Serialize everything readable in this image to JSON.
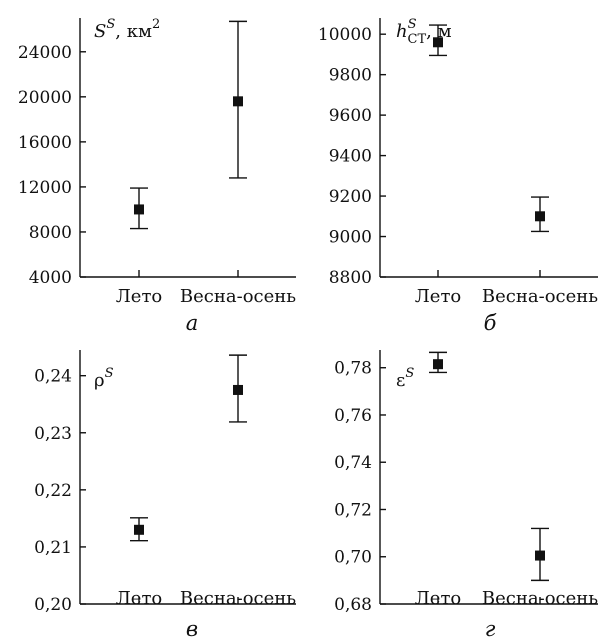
{
  "chart_data": [
    {
      "type": "scatter",
      "panel_letter": "а",
      "ylabel": "S^S, км²",
      "ylabel_parts": {
        "base": "S",
        "sup": "S",
        "unit": ", км",
        "unit_sup": "2"
      },
      "categories": [
        "Лето",
        "Весна-осень"
      ],
      "values": [
        10000,
        19600
      ],
      "err_low": [
        8300,
        12800
      ],
      "err_high": [
        11900,
        26700
      ],
      "ylim": [
        4000,
        27000
      ],
      "yticks": [
        4000,
        8000,
        12000,
        16000,
        20000,
        24000
      ],
      "ytick_labels": [
        "4000",
        "8000",
        "12000",
        "16000",
        "20000",
        "24000"
      ]
    },
    {
      "type": "scatter",
      "panel_letter": "б",
      "ylabel": "h^S_CT, м",
      "ylabel_parts": {
        "base": "h",
        "sup": "S",
        "sub": "CT",
        "unit": ", м"
      },
      "categories": [
        "Лето",
        "Весна-осень"
      ],
      "values": [
        9960,
        9100
      ],
      "err_low": [
        9895,
        9025
      ],
      "err_high": [
        10045,
        9195
      ],
      "ylim": [
        8800,
        10080
      ],
      "yticks": [
        8800,
        9000,
        9200,
        9400,
        9600,
        9800,
        10000
      ],
      "ytick_labels": [
        "8800",
        "9000",
        "9200",
        "9400",
        "9600",
        "9800",
        "10000"
      ]
    },
    {
      "type": "scatter",
      "panel_letter": "в",
      "ylabel": "ρ^S",
      "ylabel_parts": {
        "base": "ρ",
        "sup": "S"
      },
      "categories": [
        "Лето",
        "Весна-осень"
      ],
      "values": [
        0.213,
        0.2375
      ],
      "err_low": [
        0.2111,
        0.2319
      ],
      "err_high": [
        0.2151,
        0.2436
      ],
      "ylim": [
        0.2,
        0.2445
      ],
      "yticks": [
        0.2,
        0.21,
        0.22,
        0.23,
        0.24
      ],
      "ytick_labels": [
        "0,20",
        "0,21",
        "0,22",
        "0,23",
        "0,24"
      ]
    },
    {
      "type": "scatter",
      "panel_letter": "г",
      "ylabel": "ε^S",
      "ylabel_parts": {
        "base": "ε",
        "sup": "S"
      },
      "categories": [
        "Лето",
        "Весна-осень"
      ],
      "values": [
        0.7815,
        0.7005
      ],
      "err_low": [
        0.778,
        0.69
      ],
      "err_high": [
        0.7865,
        0.712
      ],
      "ylim": [
        0.68,
        0.7875
      ],
      "yticks": [
        0.68,
        0.7,
        0.72,
        0.74,
        0.76,
        0.78
      ],
      "ytick_labels": [
        "0,68",
        "0,70",
        "0,72",
        "0,74",
        "0,76",
        "0,78"
      ]
    }
  ]
}
